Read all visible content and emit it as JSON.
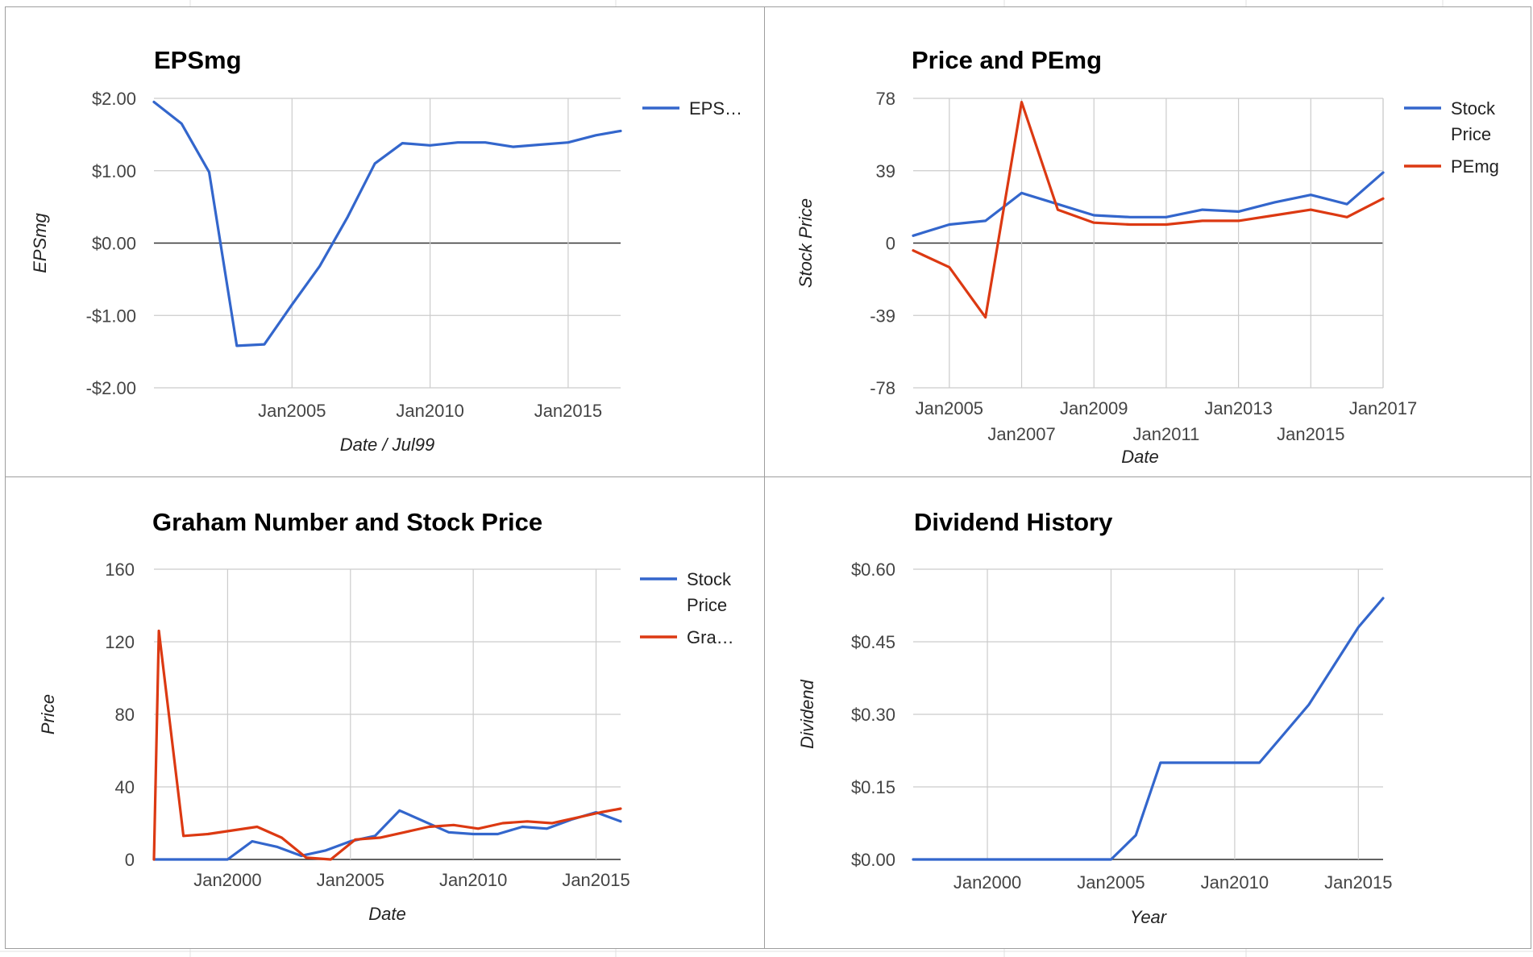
{
  "colors": {
    "blue": "#3366cc",
    "red": "#dc3912",
    "grid": "#cccccc",
    "baseline": "#333333"
  },
  "chart_data": [
    {
      "id": "eps",
      "type": "line",
      "title": "EPSmg",
      "xlabel": "Date / Jul99",
      "ylabel": "EPSmg",
      "ylim": [
        -2,
        2
      ],
      "yticks": [
        "$2.00",
        "$1.00",
        "$0.00",
        "-$1.00",
        "-$2.00"
      ],
      "ytick_values": [
        2,
        1,
        0,
        -1,
        -2
      ],
      "xlim": [
        2000.0,
        2016.9
      ],
      "xticks": [
        {
          "label": "Jan2005",
          "v": 2005.0
        },
        {
          "label": "Jan2010",
          "v": 2010.0
        },
        {
          "label": "Jan2015",
          "v": 2015.0
        }
      ],
      "xgrid_only": true,
      "legend": "right",
      "series": [
        {
          "name": "EPS…",
          "color": "blue",
          "x": [
            2000.0,
            2001.0,
            2002.0,
            2003.0,
            2004.0,
            2005.0,
            2006.0,
            2007.0,
            2008.0,
            2009.0,
            2010.0,
            2011.0,
            2012.0,
            2013.0,
            2014.0,
            2015.0,
            2016.0,
            2016.9
          ],
          "y": [
            1.95,
            1.65,
            0.98,
            -1.42,
            -1.4,
            -0.85,
            -0.32,
            0.35,
            1.1,
            1.38,
            1.35,
            1.39,
            1.39,
            1.33,
            1.36,
            1.39,
            1.49,
            1.55
          ]
        }
      ]
    },
    {
      "id": "price_pe",
      "type": "line",
      "title": "Price and PEmg",
      "xlabel": "Date",
      "ylabel": "Stock Price",
      "ylim": [
        -78,
        78
      ],
      "yticks": [
        "78",
        "39",
        "0",
        "-39",
        "-78"
      ],
      "ytick_values": [
        78,
        39,
        0,
        -39,
        -78
      ],
      "xlim": [
        2004.0,
        2017.0
      ],
      "xticks": [
        {
          "label": "Jan2005",
          "v": 2005.0,
          "row": 0
        },
        {
          "label": "Jan2007",
          "v": 2007.0,
          "row": 1
        },
        {
          "label": "Jan2009",
          "v": 2009.0,
          "row": 0
        },
        {
          "label": "Jan2011",
          "v": 2011.0,
          "row": 1
        },
        {
          "label": "Jan2013",
          "v": 2013.0,
          "row": 0
        },
        {
          "label": "Jan2015",
          "v": 2015.0,
          "row": 1
        },
        {
          "label": "Jan2017",
          "v": 2017.0,
          "row": 0
        }
      ],
      "legend": "right",
      "series": [
        {
          "name": [
            "Stock",
            "Price"
          ],
          "color": "blue",
          "x": [
            2004.0,
            2005.0,
            2006.0,
            2007.0,
            2008.0,
            2009.0,
            2010.0,
            2011.0,
            2012.0,
            2013.0,
            2014.0,
            2015.0,
            2016.0,
            2017.0
          ],
          "y": [
            4,
            10,
            12,
            27,
            21,
            15,
            14,
            14,
            18,
            17,
            22,
            26,
            21,
            38
          ]
        },
        {
          "name": [
            "PEmg"
          ],
          "color": "red",
          "x": [
            2004.0,
            2005.0,
            2006.0,
            2007.0,
            2008.0,
            2009.0,
            2010.0,
            2011.0,
            2012.0,
            2013.0,
            2014.0,
            2015.0,
            2016.0,
            2017.0
          ],
          "y": [
            -4,
            -13,
            -40,
            76,
            18,
            11,
            10,
            10,
            12,
            12,
            15,
            18,
            14,
            24
          ]
        }
      ]
    },
    {
      "id": "graham",
      "type": "line",
      "title": "Graham Number and Stock Price",
      "xlabel": "Date",
      "ylabel": "Price",
      "ylim": [
        0,
        160
      ],
      "yticks": [
        "160",
        "120",
        "80",
        "40",
        "0"
      ],
      "ytick_values": [
        160,
        120,
        80,
        40,
        0
      ],
      "xlim": [
        1997.0,
        2016.0
      ],
      "xticks": [
        {
          "label": "Jan2000",
          "v": 2000.0
        },
        {
          "label": "Jan2005",
          "v": 2005.0
        },
        {
          "label": "Jan2010",
          "v": 2010.0
        },
        {
          "label": "Jan2015",
          "v": 2015.0
        }
      ],
      "legend": "right",
      "series": [
        {
          "name": [
            "Stock",
            "Price"
          ],
          "color": "blue",
          "x": [
            1997.0,
            1998.0,
            1999.0,
            2000.0,
            2001.0,
            2002.0,
            2003.0,
            2004.0,
            2005.0,
            2006.0,
            2007.0,
            2008.0,
            2009.0,
            2010.0,
            2011.0,
            2012.0,
            2013.0,
            2014.0,
            2015.0,
            2016.0
          ],
          "y": [
            0,
            0,
            0,
            0,
            10,
            7,
            2,
            5,
            10,
            13,
            27,
            21,
            15,
            14,
            14,
            18,
            17,
            22,
            26,
            21
          ]
        },
        {
          "name": [
            "Gra…"
          ],
          "color": "red",
          "x": [
            1997.0,
            1997.2,
            1998.2,
            1999.2,
            2000.2,
            2001.2,
            2002.2,
            2003.2,
            2004.2,
            2005.2,
            2006.2,
            2007.2,
            2008.2,
            2009.2,
            2010.2,
            2011.2,
            2012.2,
            2013.2,
            2014.2,
            2015.2,
            2016.0
          ],
          "y": [
            0,
            126,
            13,
            14,
            16,
            18,
            12,
            1,
            0,
            11,
            12,
            15,
            18,
            19,
            17,
            20,
            21,
            20,
            23,
            26,
            28
          ]
        }
      ]
    },
    {
      "id": "dividend",
      "type": "line",
      "title": "Dividend History",
      "xlabel": "Year",
      "ylabel": "Dividend",
      "ylim": [
        0,
        0.6
      ],
      "yticks": [
        "$0.60",
        "$0.45",
        "$0.30",
        "$0.15",
        "$0.00"
      ],
      "ytick_values": [
        0.6,
        0.45,
        0.3,
        0.15,
        0.0
      ],
      "xlim": [
        1997.0,
        2016.0
      ],
      "xticks": [
        {
          "label": "Jan2000",
          "v": 2000.0
        },
        {
          "label": "Jan2005",
          "v": 2005.0
        },
        {
          "label": "Jan2010",
          "v": 2010.0
        },
        {
          "label": "Jan2015",
          "v": 2015.0
        }
      ],
      "legend": "none",
      "series": [
        {
          "name": "Dividend",
          "color": "blue",
          "x": [
            1997.0,
            2005.0,
            2006.0,
            2007.0,
            2008.0,
            2009.0,
            2010.0,
            2011.0,
            2012.0,
            2013.0,
            2014.0,
            2015.0,
            2016.0
          ],
          "y": [
            0,
            0,
            0.05,
            0.2,
            0.2,
            0.2,
            0.2,
            0.2,
            0.26,
            0.32,
            0.4,
            0.48,
            0.54
          ]
        }
      ]
    }
  ]
}
